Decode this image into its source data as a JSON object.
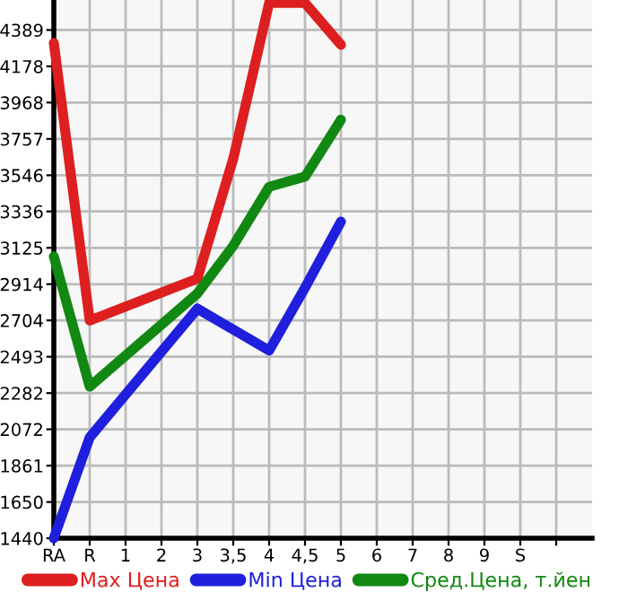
{
  "chart_data": {
    "type": "line",
    "categories": [
      "RA",
      "R",
      "1",
      "2",
      "3",
      "3,5",
      "4",
      "4,5",
      "5",
      "6",
      "7",
      "8",
      "9",
      "S",
      null
    ],
    "series": [
      {
        "name": "Max Цена",
        "color": "#dd1f1f",
        "values": [
          4314,
          2703,
          null,
          null,
          2946,
          3642,
          4546,
          4546,
          4303,
          null,
          null,
          null,
          null,
          null,
          null
        ]
      },
      {
        "name": "Min Цена",
        "color": "#1f1fdd",
        "values": [
          1440,
          2025,
          null,
          null,
          2772,
          null,
          2529,
          2894,
          3277,
          null,
          null,
          null,
          null,
          null,
          null
        ]
      },
      {
        "name": "Сред.Цена, т.йен",
        "color": "#118811",
        "values": [
          3075,
          2320,
          null,
          null,
          2860,
          3137,
          3479,
          3538,
          3868,
          null,
          null,
          null,
          null,
          null,
          null
        ]
      }
    ],
    "ylim": [
      1440,
      4563
    ],
    "yticks": [
      1440,
      1650,
      1861,
      2072,
      2282,
      2493,
      2704,
      2914,
      3125,
      3336,
      3546,
      3757,
      3968,
      4178,
      4389
    ],
    "grid": true,
    "legend": "bottom",
    "marker": "none",
    "line_style": "solid"
  }
}
